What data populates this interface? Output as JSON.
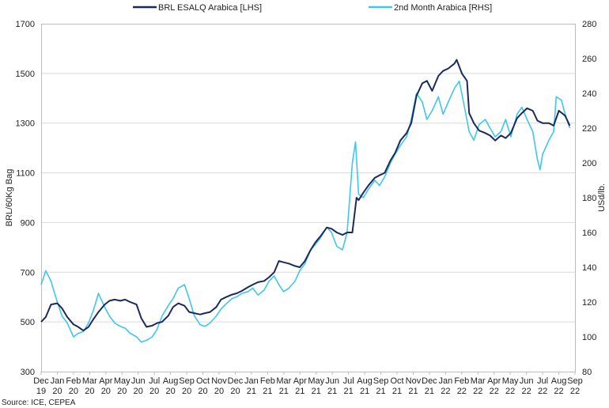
{
  "chart_data": {
    "type": "line",
    "title": "",
    "source": "Source: ICE, CEPEA",
    "ylabel_left": "BRL/60Kg Bag",
    "ylabel_right": "USd/lb.",
    "ylim_left": [
      300,
      1700
    ],
    "ylim_right": [
      80,
      280
    ],
    "yticks_left": [
      "300",
      "500",
      "700",
      "900",
      "1100",
      "1300",
      "1500",
      "1700"
    ],
    "yticks_right": [
      "80",
      "100",
      "120",
      "140",
      "160",
      "180",
      "200",
      "220",
      "240",
      "260",
      "280"
    ],
    "grid": "horizontal",
    "legend_position": "top-center",
    "x_ticks": [
      {
        "month": "Dec",
        "year": "19"
      },
      {
        "month": "Jan",
        "year": "20"
      },
      {
        "month": "Feb",
        "year": "20"
      },
      {
        "month": "Mar",
        "year": "20"
      },
      {
        "month": "Apr",
        "year": "20"
      },
      {
        "month": "May",
        "year": "20"
      },
      {
        "month": "Jun",
        "year": "20"
      },
      {
        "month": "Jul",
        "year": "20"
      },
      {
        "month": "Aug",
        "year": "20"
      },
      {
        "month": "Sep",
        "year": "20"
      },
      {
        "month": "Oct",
        "year": "20"
      },
      {
        "month": "Nov",
        "year": "20"
      },
      {
        "month": "Dec",
        "year": "20"
      },
      {
        "month": "Jan",
        "year": "21"
      },
      {
        "month": "Feb",
        "year": "21"
      },
      {
        "month": "Mar",
        "year": "21"
      },
      {
        "month": "Apr",
        "year": "21"
      },
      {
        "month": "May",
        "year": "21"
      },
      {
        "month": "Jun",
        "year": "21"
      },
      {
        "month": "Jul",
        "year": "21"
      },
      {
        "month": "Aug",
        "year": "21"
      },
      {
        "month": "Sep",
        "year": "21"
      },
      {
        "month": "Oct",
        "year": "21"
      },
      {
        "month": "Nov",
        "year": "21"
      },
      {
        "month": "Dec",
        "year": "21"
      },
      {
        "month": "Jan",
        "year": "22"
      },
      {
        "month": "Feb",
        "year": "22"
      },
      {
        "month": "Mar",
        "year": "22"
      },
      {
        "month": "Apr",
        "year": "22"
      },
      {
        "month": "May",
        "year": "22"
      },
      {
        "month": "Jun",
        "year": "22"
      },
      {
        "month": "Jul",
        "year": "22"
      },
      {
        "month": "Aug",
        "year": "22"
      },
      {
        "month": "Sep",
        "year": "22"
      }
    ],
    "series": [
      {
        "name": "BRL ESALQ Arabica [LHS]",
        "axis": "left",
        "color": "#1b2a5c",
        "points": [
          [
            "2019-12-01",
            500
          ],
          [
            "2019-12-10",
            520
          ],
          [
            "2019-12-20",
            570
          ],
          [
            "2020-01-01",
            575
          ],
          [
            "2020-01-10",
            555
          ],
          [
            "2020-01-20",
            520
          ],
          [
            "2020-02-01",
            490
          ],
          [
            "2020-02-10",
            480
          ],
          [
            "2020-02-20",
            465
          ],
          [
            "2020-03-01",
            480
          ],
          [
            "2020-03-10",
            510
          ],
          [
            "2020-03-20",
            540
          ],
          [
            "2020-04-01",
            570
          ],
          [
            "2020-04-10",
            585
          ],
          [
            "2020-04-20",
            590
          ],
          [
            "2020-05-01",
            585
          ],
          [
            "2020-05-10",
            590
          ],
          [
            "2020-05-20",
            580
          ],
          [
            "2020-06-01",
            570
          ],
          [
            "2020-06-10",
            515
          ],
          [
            "2020-06-20",
            480
          ],
          [
            "2020-07-01",
            485
          ],
          [
            "2020-07-10",
            495
          ],
          [
            "2020-07-20",
            500
          ],
          [
            "2020-08-01",
            525
          ],
          [
            "2020-08-10",
            560
          ],
          [
            "2020-08-20",
            575
          ],
          [
            "2020-09-01",
            565
          ],
          [
            "2020-09-10",
            540
          ],
          [
            "2020-09-20",
            535
          ],
          [
            "2020-10-01",
            530
          ],
          [
            "2020-10-10",
            535
          ],
          [
            "2020-10-20",
            540
          ],
          [
            "2020-11-01",
            560
          ],
          [
            "2020-11-10",
            590
          ],
          [
            "2020-11-20",
            600
          ],
          [
            "2020-12-01",
            610
          ],
          [
            "2020-12-10",
            615
          ],
          [
            "2020-12-20",
            625
          ],
          [
            "2021-01-01",
            640
          ],
          [
            "2021-01-10",
            650
          ],
          [
            "2021-01-20",
            660
          ],
          [
            "2021-02-01",
            665
          ],
          [
            "2021-02-10",
            680
          ],
          [
            "2021-02-20",
            700
          ],
          [
            "2021-03-01",
            745
          ],
          [
            "2021-03-10",
            740
          ],
          [
            "2021-03-20",
            735
          ],
          [
            "2021-04-01",
            725
          ],
          [
            "2021-04-10",
            720
          ],
          [
            "2021-04-20",
            745
          ],
          [
            "2021-05-01",
            790
          ],
          [
            "2021-05-10",
            820
          ],
          [
            "2021-05-20",
            845
          ],
          [
            "2021-06-01",
            880
          ],
          [
            "2021-06-10",
            875
          ],
          [
            "2021-06-20",
            860
          ],
          [
            "2021-07-01",
            850
          ],
          [
            "2021-07-10",
            860
          ],
          [
            "2021-07-20",
            860
          ],
          [
            "2021-07-28",
            1000
          ],
          [
            "2021-08-01",
            990
          ],
          [
            "2021-08-10",
            1020
          ],
          [
            "2021-08-20",
            1050
          ],
          [
            "2021-09-01",
            1080
          ],
          [
            "2021-09-10",
            1090
          ],
          [
            "2021-09-20",
            1100
          ],
          [
            "2021-10-01",
            1150
          ],
          [
            "2021-10-10",
            1180
          ],
          [
            "2021-10-20",
            1230
          ],
          [
            "2021-11-01",
            1260
          ],
          [
            "2021-11-10",
            1300
          ],
          [
            "2021-11-20",
            1410
          ],
          [
            "2021-12-01",
            1460
          ],
          [
            "2021-12-10",
            1470
          ],
          [
            "2021-12-20",
            1430
          ],
          [
            "2022-01-01",
            1490
          ],
          [
            "2022-01-10",
            1510
          ],
          [
            "2022-01-20",
            1520
          ],
          [
            "2022-02-01",
            1540
          ],
          [
            "2022-02-05",
            1555
          ],
          [
            "2022-02-15",
            1500
          ],
          [
            "2022-02-25",
            1470
          ],
          [
            "2022-03-01",
            1340
          ],
          [
            "2022-03-10",
            1300
          ],
          [
            "2022-03-20",
            1270
          ],
          [
            "2022-04-01",
            1260
          ],
          [
            "2022-04-10",
            1250
          ],
          [
            "2022-04-20",
            1230
          ],
          [
            "2022-05-01",
            1250
          ],
          [
            "2022-05-10",
            1240
          ],
          [
            "2022-05-20",
            1260
          ],
          [
            "2022-06-01",
            1320
          ],
          [
            "2022-06-10",
            1340
          ],
          [
            "2022-06-20",
            1360
          ],
          [
            "2022-07-01",
            1350
          ],
          [
            "2022-07-10",
            1310
          ],
          [
            "2022-07-20",
            1300
          ],
          [
            "2022-08-01",
            1300
          ],
          [
            "2022-08-10",
            1290
          ],
          [
            "2022-08-20",
            1350
          ],
          [
            "2022-09-01",
            1330
          ],
          [
            "2022-09-10",
            1290
          ]
        ]
      },
      {
        "name": "2nd Month Arabica [RHS]",
        "axis": "right",
        "color": "#3fc6ef",
        "points": [
          [
            "2019-12-01",
            130
          ],
          [
            "2019-12-10",
            138
          ],
          [
            "2019-12-20",
            132
          ],
          [
            "2020-01-01",
            120
          ],
          [
            "2020-01-10",
            112
          ],
          [
            "2020-01-20",
            108
          ],
          [
            "2020-02-01",
            100
          ],
          [
            "2020-02-10",
            102
          ],
          [
            "2020-02-20",
            103
          ],
          [
            "2020-03-01",
            108
          ],
          [
            "2020-03-10",
            115
          ],
          [
            "2020-03-20",
            125
          ],
          [
            "2020-04-01",
            117
          ],
          [
            "2020-04-10",
            112
          ],
          [
            "2020-04-20",
            108
          ],
          [
            "2020-05-01",
            106
          ],
          [
            "2020-05-10",
            105
          ],
          [
            "2020-05-20",
            102
          ],
          [
            "2020-06-01",
            100
          ],
          [
            "2020-06-10",
            97
          ],
          [
            "2020-06-20",
            98
          ],
          [
            "2020-07-01",
            100
          ],
          [
            "2020-07-10",
            104
          ],
          [
            "2020-07-20",
            112
          ],
          [
            "2020-08-01",
            118
          ],
          [
            "2020-08-10",
            122
          ],
          [
            "2020-08-20",
            128
          ],
          [
            "2020-09-01",
            130
          ],
          [
            "2020-09-10",
            122
          ],
          [
            "2020-09-20",
            112
          ],
          [
            "2020-10-01",
            107
          ],
          [
            "2020-10-10",
            106
          ],
          [
            "2020-10-20",
            108
          ],
          [
            "2020-11-01",
            112
          ],
          [
            "2020-11-10",
            116
          ],
          [
            "2020-11-20",
            119
          ],
          [
            "2020-12-01",
            122
          ],
          [
            "2020-12-10",
            123
          ],
          [
            "2020-12-20",
            125
          ],
          [
            "2021-01-01",
            126
          ],
          [
            "2021-01-10",
            128
          ],
          [
            "2021-01-20",
            124
          ],
          [
            "2021-02-01",
            127
          ],
          [
            "2021-02-10",
            132
          ],
          [
            "2021-02-20",
            135
          ],
          [
            "2021-03-01",
            130
          ],
          [
            "2021-03-10",
            126
          ],
          [
            "2021-03-20",
            128
          ],
          [
            "2021-04-01",
            132
          ],
          [
            "2021-04-10",
            138
          ],
          [
            "2021-04-20",
            142
          ],
          [
            "2021-05-01",
            150
          ],
          [
            "2021-05-10",
            153
          ],
          [
            "2021-05-20",
            157
          ],
          [
            "2021-06-01",
            163
          ],
          [
            "2021-06-10",
            160
          ],
          [
            "2021-06-20",
            152
          ],
          [
            "2021-07-01",
            150
          ],
          [
            "2021-07-10",
            160
          ],
          [
            "2021-07-20",
            200
          ],
          [
            "2021-07-26",
            212
          ],
          [
            "2021-08-01",
            182
          ],
          [
            "2021-08-10",
            180
          ],
          [
            "2021-08-20",
            185
          ],
          [
            "2021-09-01",
            190
          ],
          [
            "2021-09-10",
            187
          ],
          [
            "2021-09-20",
            192
          ],
          [
            "2021-10-01",
            200
          ],
          [
            "2021-10-10",
            205
          ],
          [
            "2021-10-20",
            210
          ],
          [
            "2021-11-01",
            215
          ],
          [
            "2021-11-10",
            225
          ],
          [
            "2021-11-20",
            240
          ],
          [
            "2021-12-01",
            235
          ],
          [
            "2021-12-10",
            225
          ],
          [
            "2021-12-20",
            230
          ],
          [
            "2022-01-01",
            238
          ],
          [
            "2022-01-10",
            228
          ],
          [
            "2022-01-20",
            235
          ],
          [
            "2022-02-01",
            243
          ],
          [
            "2022-02-10",
            247
          ],
          [
            "2022-02-20",
            232
          ],
          [
            "2022-03-01",
            218
          ],
          [
            "2022-03-10",
            213
          ],
          [
            "2022-03-20",
            222
          ],
          [
            "2022-04-01",
            225
          ],
          [
            "2022-04-10",
            220
          ],
          [
            "2022-04-20",
            215
          ],
          [
            "2022-05-01",
            218
          ],
          [
            "2022-05-10",
            225
          ],
          [
            "2022-05-20",
            215
          ],
          [
            "2022-06-01",
            228
          ],
          [
            "2022-06-10",
            232
          ],
          [
            "2022-06-20",
            225
          ],
          [
            "2022-07-01",
            218
          ],
          [
            "2022-07-10",
            202
          ],
          [
            "2022-07-15",
            196
          ],
          [
            "2022-07-20",
            205
          ],
          [
            "2022-08-01",
            213
          ],
          [
            "2022-08-10",
            218
          ],
          [
            "2022-08-15",
            238
          ],
          [
            "2022-08-25",
            236
          ],
          [
            "2022-09-01",
            228
          ],
          [
            "2022-09-10",
            220
          ]
        ]
      }
    ]
  }
}
